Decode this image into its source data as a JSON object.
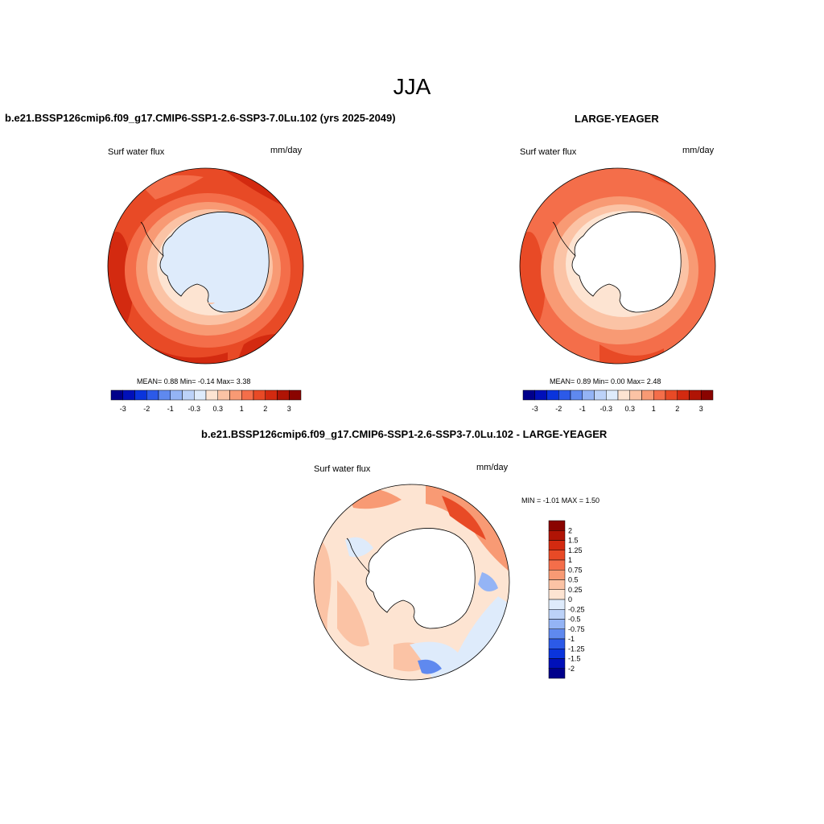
{
  "title": "JJA",
  "panels": [
    {
      "id": "model",
      "heading": "b.e21.BSSP126cmip6.f09_g17.CMIP6-SSP1-2.6-SSP3-7.0Lu.102 (yrs 2025-2049)",
      "variable": "Surf water flux",
      "units": "mm/day",
      "stats": "MEAN=   0.88  Min=  -0.14  Max=   3.38"
    },
    {
      "id": "obs",
      "heading": "LARGE-YEAGER",
      "variable": "Surf water flux",
      "units": "mm/day",
      "stats": "MEAN=   0.89  Min=   0.00  Max=   2.48"
    },
    {
      "id": "diff",
      "heading": "b.e21.BSSP126cmip6.f09_g17.CMIP6-SSP1-2.6-SSP3-7.0Lu.102 - LARGE-YEAGER",
      "variable": "Surf water flux",
      "units": "mm/day",
      "stats": "MIN =  -1.01  MAX =   1.50"
    }
  ],
  "colorbar_horizontal": {
    "colors": [
      "#00008b",
      "#0010b9",
      "#0a34dc",
      "#2c5ae8",
      "#5f89ef",
      "#94b4f5",
      "#bcd2f8",
      "#deebfb",
      "#fde4d2",
      "#fbc3a5",
      "#f89a74",
      "#f46e4a",
      "#e84a26",
      "#d32a10",
      "#b01405",
      "#8a0400"
    ],
    "tick_labels": [
      "-3",
      "-2",
      "-1",
      "-0.3",
      "0.3",
      "1",
      "2",
      "3"
    ]
  },
  "colorbar_vertical": {
    "colors": [
      "#8a0400",
      "#b01405",
      "#d32a10",
      "#e84a26",
      "#f46e4a",
      "#f89a74",
      "#fbc3a5",
      "#fde4d2",
      "#deebfb",
      "#bcd2f8",
      "#94b4f5",
      "#5f89ef",
      "#2c5ae8",
      "#0a34dc",
      "#0010b9",
      "#00008b"
    ],
    "tick_labels": [
      "2",
      "1.5",
      "1.25",
      "1",
      "0.75",
      "0.5",
      "0.25",
      "0",
      "-0.25",
      "-0.5",
      "-0.75",
      "-1",
      "-1.25",
      "-1.5",
      "-2"
    ]
  }
}
